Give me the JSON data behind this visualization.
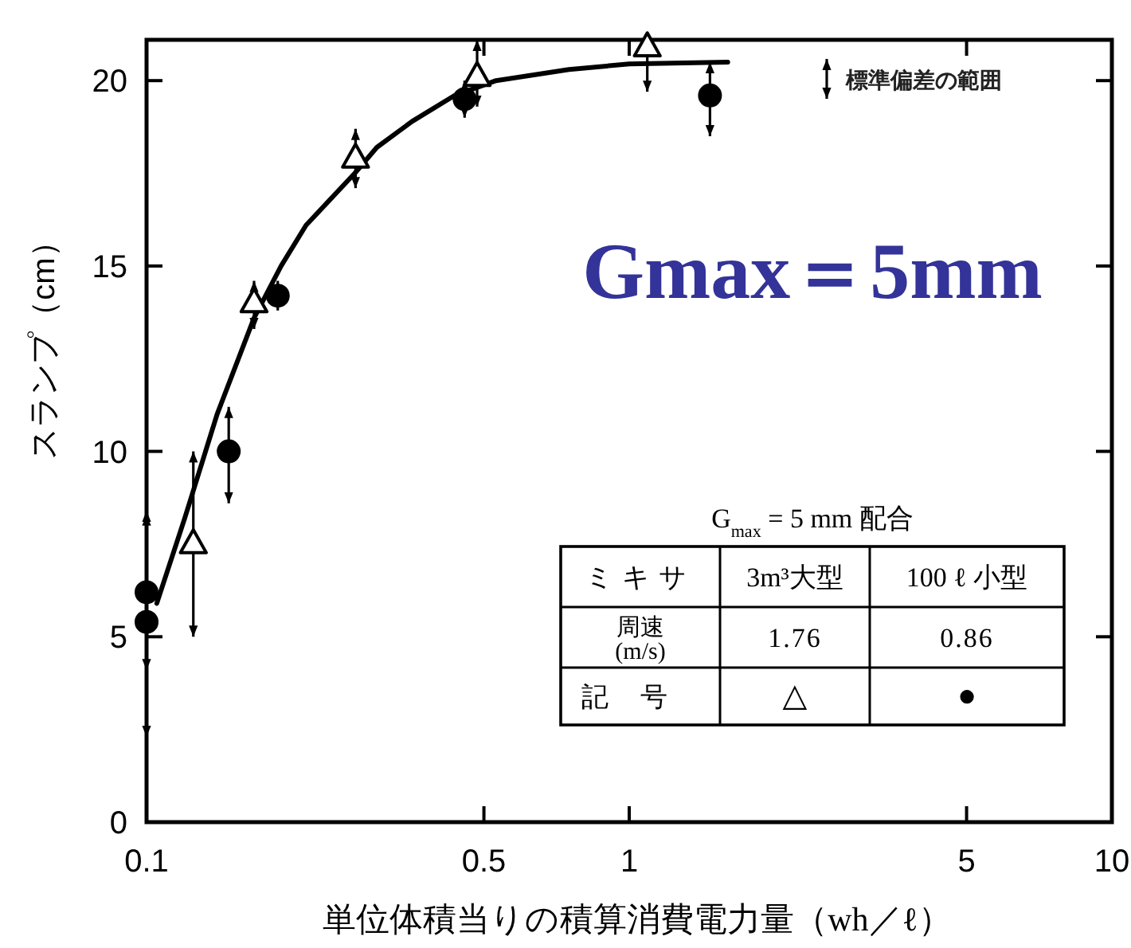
{
  "chart_data": {
    "type": "scatter",
    "xlabel": "単位体積当りの積算消費電力量（wh／ℓ）",
    "ylabel": "スランプ（cm）",
    "legend_title": "G$_{max}$ = 5 mm 配合",
    "log": "x",
    "xlim": [
      0.1,
      10
    ],
    "xticks": [
      0.1,
      0.5,
      1,
      5,
      10
    ],
    "ylim": [
      0,
      21.1
    ],
    "yticks": [
      0,
      5,
      10,
      15,
      20
    ],
    "legend": "bottom right",
    "annotations": [
      "標準偏差の範囲",
      "Gmax＝5mm",
      "ミキサ",
      "周速\n(m/s)",
      "1.76",
      "0.86",
      "記号",
      "△",
      "●"
    ],
    "series": [
      {
        "name": "3m³大型",
        "marker": "triangle",
        "color": "#000000",
        "x": [
          0.125,
          0.167,
          0.271,
          0.484,
          1.09
        ],
        "values": [
          7.5,
          14.0,
          17.9,
          20.1,
          20.9
        ],
        "errors": [
          [
            5.0,
            10.0
          ],
          [
            13.3,
            14.6
          ],
          [
            17.1,
            18.7
          ],
          [
            19.3,
            21.1
          ],
          [
            19.7,
            21.1
          ]
        ]
      },
      {
        "name": "100 ℓ 小型",
        "marker": "circle",
        "color": "#000000",
        "x": [
          0.1,
          0.1,
          0.148,
          0.187,
          0.456,
          1.47
        ],
        "values": [
          6.2,
          5.4,
          10.0,
          14.2,
          19.5,
          19.6
        ],
        "errors": [
          [
            4.1,
            8.3
          ],
          [
            2.3,
            8.4
          ],
          [
            8.6,
            11.2
          ],
          [
            13.8,
            14.6
          ],
          [
            19.0,
            20.0
          ],
          [
            18.5,
            20.5
          ]
        ]
      },
      {
        "type": "line",
        "marker": "none",
        "line_style": "solid",
        "color": "#000000",
        "x": [
          0.105,
          0.12,
          0.14,
          0.167,
          0.19,
          0.214,
          0.27,
          0.3,
          0.355,
          0.435,
          0.53,
          0.75,
          1.0,
          1.6
        ],
        "values": [
          5.9,
          8.2,
          11.0,
          13.6,
          15.0,
          16.1,
          17.5,
          18.2,
          18.9,
          19.6,
          20.0,
          20.3,
          20.45,
          20.5
        ]
      }
    ]
  }
}
